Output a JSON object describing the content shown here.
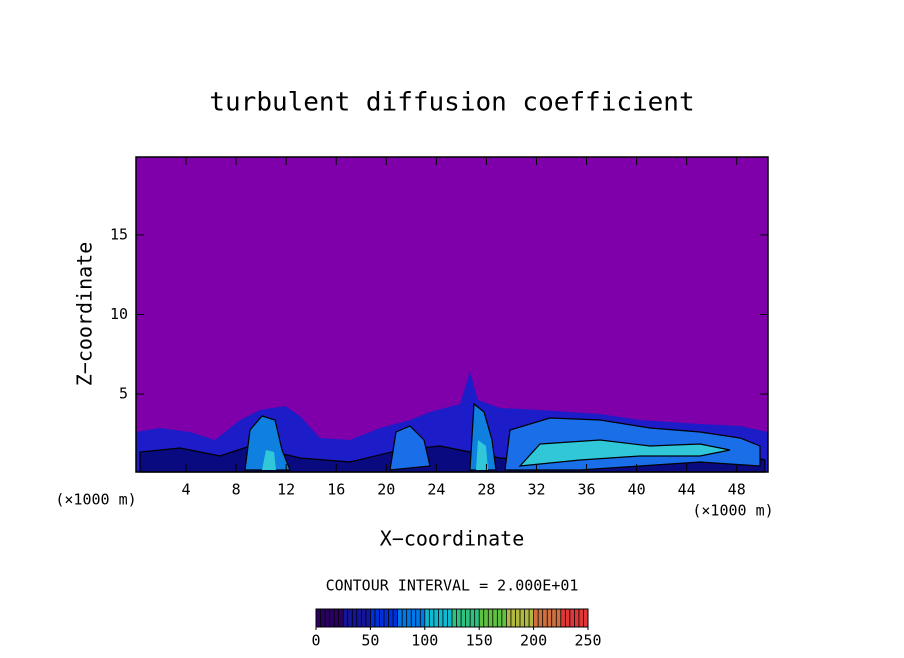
{
  "chart_data": {
    "type": "contour",
    "title": "turbulent diffusion coefficient",
    "xlabel": "X−coordinate",
    "ylabel": "Z−coordinate",
    "x_unit": "(×1000 m)",
    "y_unit": "(×1000 m)",
    "xlim": [
      0,
      50.5
    ],
    "ylim": [
      0.1,
      19.9
    ],
    "xticks": [
      4,
      8,
      12,
      16,
      20,
      24,
      28,
      32,
      36,
      40,
      44,
      48
    ],
    "yticks": [
      5,
      10,
      15
    ],
    "background_color": "#7f00aa",
    "contour_interval_text": "CONTOUR INTERVAL = 2.000E+01",
    "clim": [
      0,
      250
    ],
    "cticks": [
      0,
      50,
      100,
      150,
      200,
      250
    ],
    "colorbar_colors": [
      "#2a0060",
      "#15159a",
      "#0030d8",
      "#0078e8",
      "#10b8d0",
      "#30c080",
      "#60c040",
      "#b0b840",
      "#d07040",
      "#e03838"
    ]
  }
}
